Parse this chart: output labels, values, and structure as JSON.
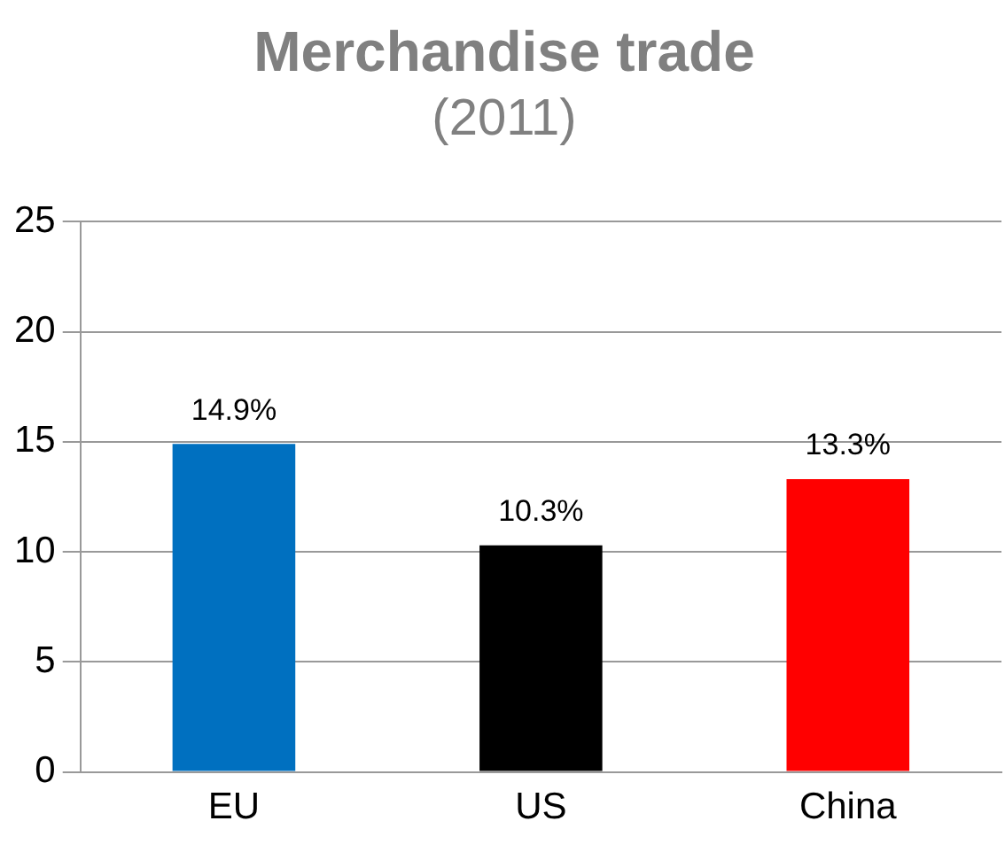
{
  "chart_data": {
    "type": "bar",
    "title": "Merchandise trade",
    "subtitle": "(2011)",
    "categories": [
      "EU",
      "US",
      "China"
    ],
    "values": [
      14.9,
      10.3,
      13.3
    ],
    "colors": [
      "#0070c0",
      "#000000",
      "#ff0000"
    ],
    "value_labels": [
      "14.9%",
      "10.3%",
      "13.3%"
    ],
    "ylim": [
      0,
      25
    ],
    "yticks": [
      0,
      5,
      10,
      15,
      20,
      25
    ],
    "grid": "y",
    "legend": false
  }
}
